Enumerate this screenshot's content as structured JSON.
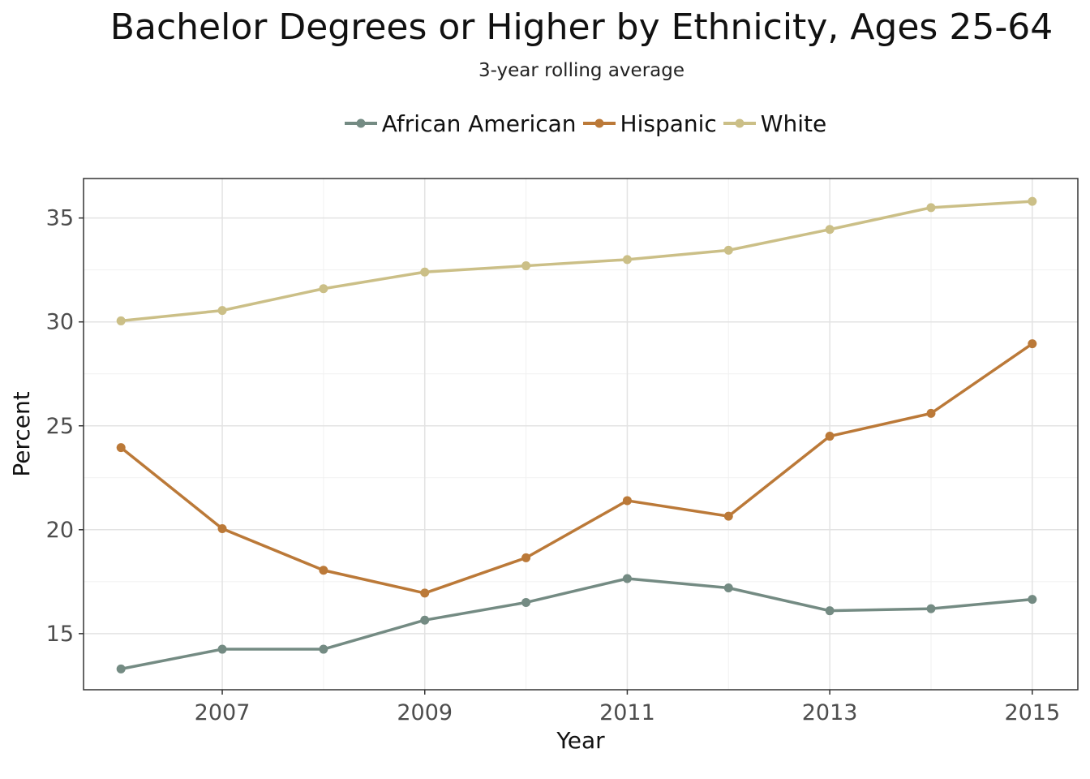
{
  "chart_data": {
    "type": "line",
    "title": "Bachelor Degrees or Higher by Ethnicity, Ages 25-64",
    "subtitle": "3-year rolling average",
    "xlabel": "Year",
    "ylabel": "Percent",
    "x": [
      2006,
      2007,
      2008,
      2009,
      2010,
      2011,
      2012,
      2013,
      2014,
      2015
    ],
    "xticks": [
      2007,
      2009,
      2011,
      2013,
      2015
    ],
    "yticks": [
      15,
      20,
      25,
      30,
      35
    ],
    "xlim": [
      2005.63,
      2015.45
    ],
    "ylim": [
      12.3,
      36.9
    ],
    "grid": true,
    "legend_position": "top",
    "series": [
      {
        "name": "African American",
        "color": "#748b83",
        "values": [
          13.3,
          14.25,
          14.25,
          15.65,
          16.5,
          17.65,
          17.2,
          16.1,
          16.2,
          16.65
        ]
      },
      {
        "name": "Hispanic",
        "color": "#bb7938",
        "values": [
          23.95,
          20.05,
          18.05,
          16.95,
          18.65,
          21.4,
          20.65,
          24.5,
          25.6,
          28.95
        ]
      },
      {
        "name": "White",
        "color": "#cbbf87",
        "values": [
          30.05,
          30.55,
          31.6,
          32.4,
          32.7,
          33.0,
          33.45,
          34.45,
          35.5,
          35.8
        ]
      }
    ]
  }
}
